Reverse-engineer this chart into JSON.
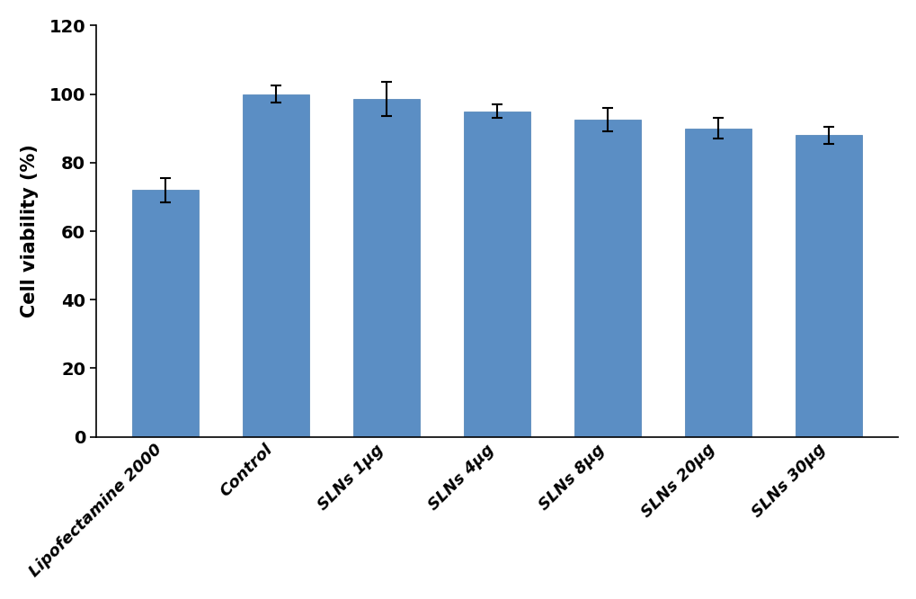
{
  "categories": [
    "Lipofectamine 2000",
    "Control",
    "SLNs 1μg",
    "SLNs 4μg",
    "SLNs 8μg",
    "SLNs 20μg",
    "SLNs 30μg"
  ],
  "values": [
    72.0,
    100.0,
    98.5,
    95.0,
    92.5,
    90.0,
    88.0
  ],
  "errors": [
    3.5,
    2.5,
    5.0,
    2.0,
    3.5,
    3.0,
    2.5
  ],
  "bar_color": "#5B8EC4",
  "bar_edgecolor": "#4a7db3",
  "ylabel": "Cell viability (%)",
  "ylim": [
    0,
    120
  ],
  "yticks": [
    0,
    20,
    40,
    60,
    80,
    100,
    120
  ],
  "bar_width": 0.6,
  "background_color": "#ffffff",
  "error_cap_size": 4,
  "error_linewidth": 1.5,
  "error_color": "black"
}
